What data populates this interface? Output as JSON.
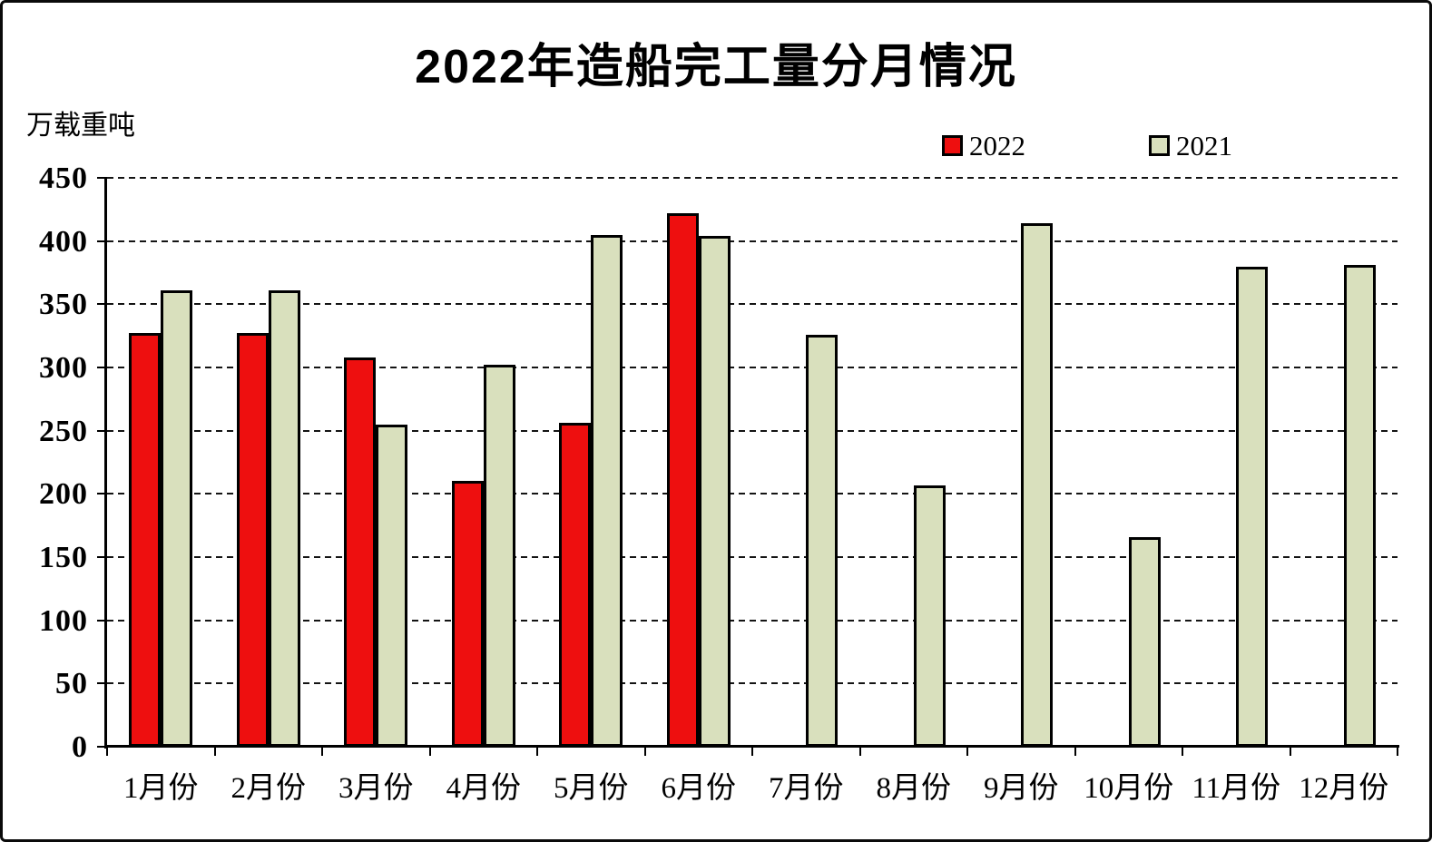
{
  "page": {
    "title": "2022年造船完工量分月情况",
    "unit_label": "万载重吨"
  },
  "chart_data": {
    "type": "bar",
    "title": "2022年造船完工量分月情况",
    "ylabel": "万载重吨",
    "xlabel": "",
    "categories": [
      "1月份",
      "2月份",
      "3月份",
      "4月份",
      "5月份",
      "6月份",
      "7月份",
      "8月份",
      "9月份",
      "10月份",
      "11月份",
      "12月份"
    ],
    "series": [
      {
        "name": "2022",
        "color": "#ee0f0f",
        "values": [
          327,
          327,
          308,
          210,
          256,
          422,
          null,
          null,
          null,
          null,
          null,
          null
        ]
      },
      {
        "name": "2021",
        "color": "#d9e0bd",
        "values": [
          361,
          361,
          255,
          302,
          405,
          404,
          326,
          207,
          414,
          166,
          380,
          381
        ]
      }
    ],
    "ylim": [
      0,
      450
    ],
    "yticks": [
      0,
      50,
      100,
      150,
      200,
      250,
      300,
      350,
      400,
      450
    ],
    "grid": "horizontal-dashed",
    "legend_position": "top-right",
    "bar_border_color": "#000000",
    "background": "#ffffff"
  }
}
